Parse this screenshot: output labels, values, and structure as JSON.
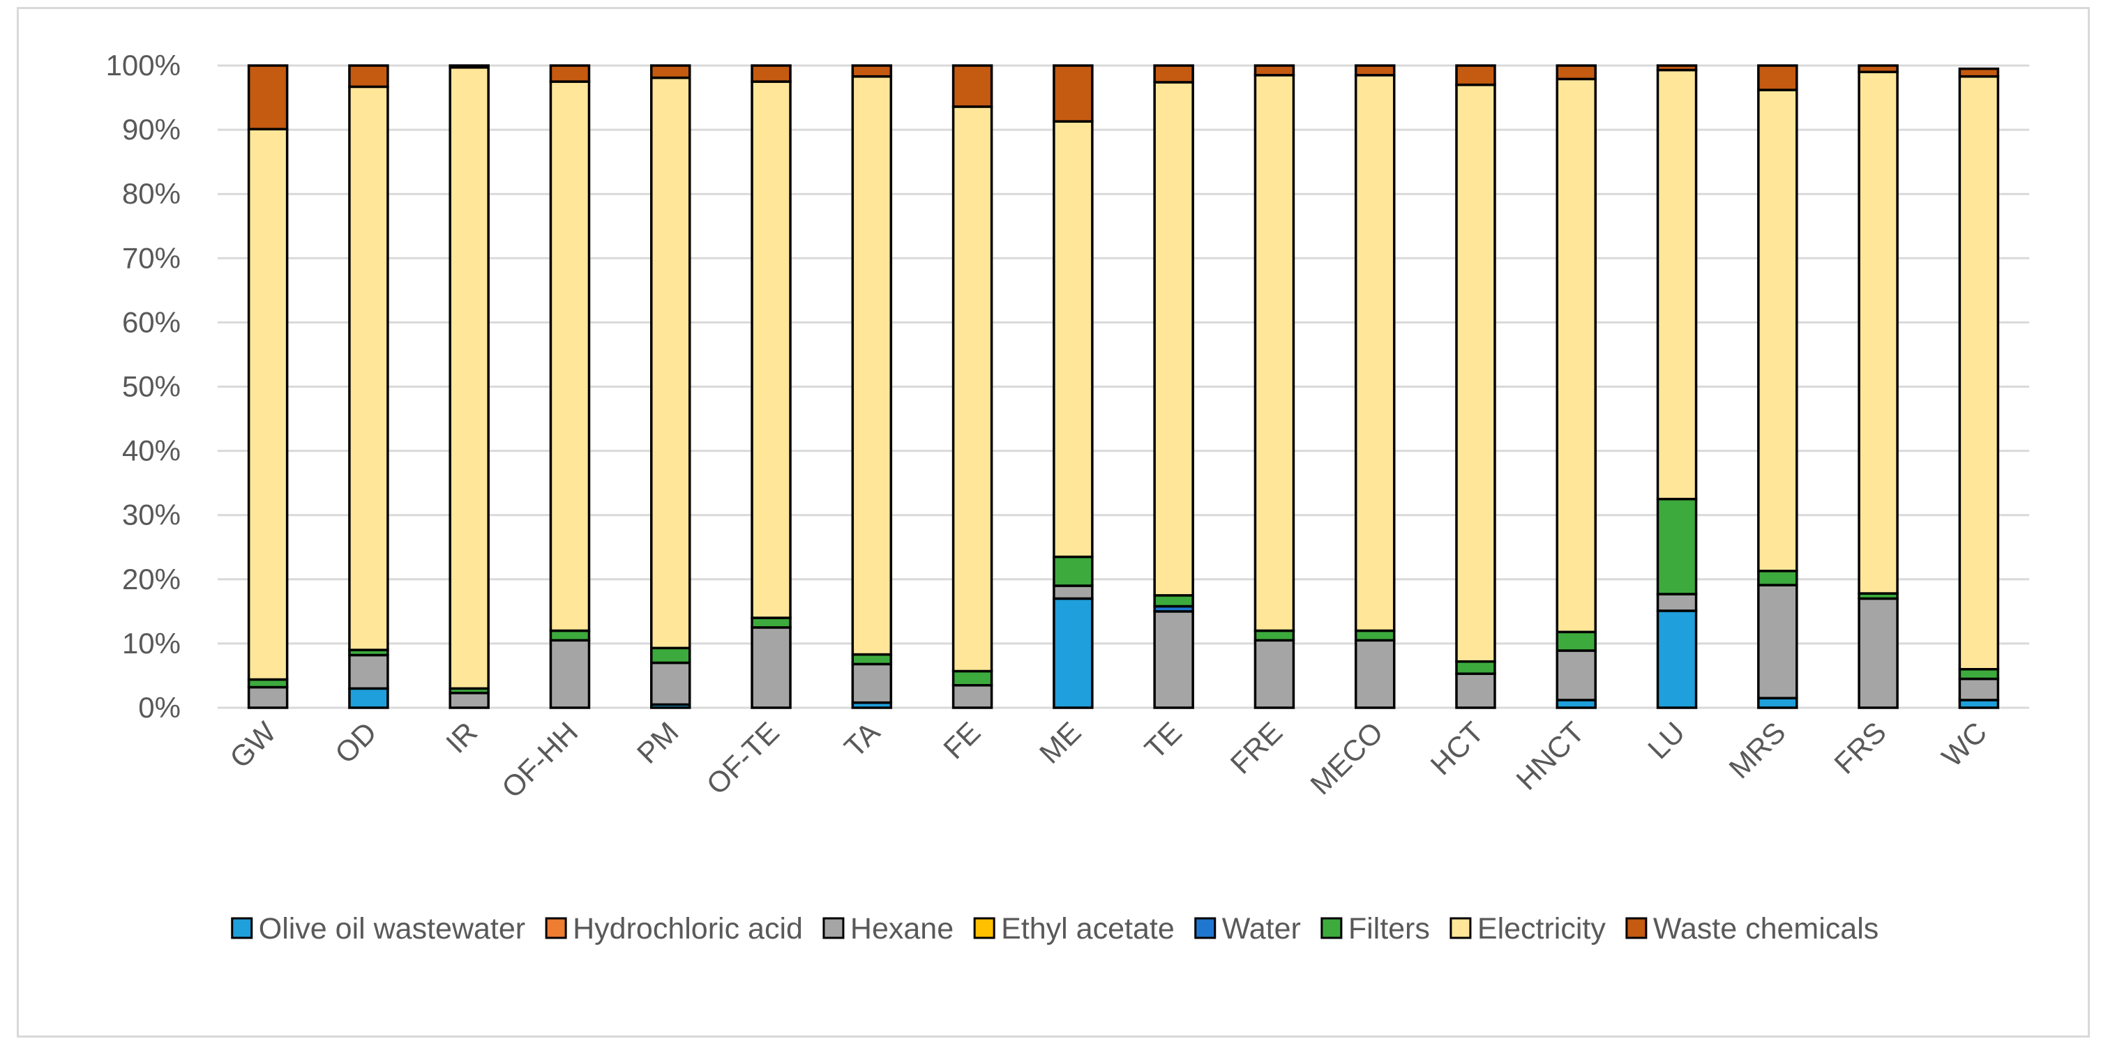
{
  "chart_data": {
    "type": "bar",
    "stacked": true,
    "percent": true,
    "title": "",
    "xlabel": "",
    "ylabel": "",
    "ylim": [
      0,
      100
    ],
    "yticks": [
      "0%",
      "10%",
      "20%",
      "30%",
      "40%",
      "50%",
      "60%",
      "70%",
      "80%",
      "90%",
      "100%"
    ],
    "grid": true,
    "legend_position": "bottom",
    "categories": [
      "GW",
      "OD",
      "IR",
      "OF-HH",
      "PM",
      "OF-TE",
      "TA",
      "FE",
      "ME",
      "TE",
      "FRE",
      "MECO",
      "HCT",
      "HNCT",
      "LU",
      "MRS",
      "FRS",
      "WC"
    ],
    "series": [
      {
        "name": "Olive oil wastewater",
        "color": "#1f9fdb",
        "values": [
          0,
          3,
          0,
          0,
          0.5,
          0,
          0.8,
          0,
          17,
          0,
          0,
          0,
          0,
          1.2,
          15.1,
          1.5,
          0,
          1.2
        ]
      },
      {
        "name": "Hydrochloric acid",
        "color": "#ed7d31",
        "values": [
          0,
          0,
          0,
          0,
          0,
          0,
          0,
          0,
          0,
          0,
          0,
          0,
          0,
          0,
          0,
          0,
          0,
          0
        ]
      },
      {
        "name": "Hexane",
        "color": "#a5a5a5",
        "values": [
          3.2,
          5.2,
          2.3,
          10.5,
          6.5,
          12.5,
          6,
          3.5,
          2,
          15,
          10.5,
          10.5,
          5.3,
          7.7,
          2.6,
          17.6,
          17,
          3.3
        ]
      },
      {
        "name": "Ethyl acetate",
        "color": "#ffc000",
        "values": [
          0,
          0,
          0,
          0,
          0,
          0,
          0,
          0,
          0,
          0,
          0,
          0,
          0,
          0,
          0,
          0,
          0,
          0
        ]
      },
      {
        "name": "Water",
        "color": "#1f77d0",
        "values": [
          0,
          0,
          0,
          0,
          0,
          0,
          0,
          0,
          0,
          0.8,
          0,
          0,
          0,
          0,
          0,
          0,
          0,
          0
        ]
      },
      {
        "name": "Filters",
        "color": "#3daa3d",
        "values": [
          1.2,
          0.8,
          0.7,
          1.5,
          2.3,
          1.5,
          1.5,
          2.2,
          4.5,
          1.7,
          1.5,
          1.5,
          1.9,
          2.9,
          14.8,
          2.2,
          0.8,
          1.5
        ]
      },
      {
        "name": "Electricity",
        "color": "#ffe699",
        "values": [
          85.7,
          87.7,
          96.7,
          85.5,
          88.8,
          83.5,
          90,
          87.9,
          67.8,
          79.9,
          86.5,
          86.5,
          89.8,
          86.1,
          66.8,
          74.9,
          81.2,
          92.3
        ]
      },
      {
        "name": "Waste chemicals",
        "color": "#c55a11",
        "values": [
          9.9,
          3.3,
          0.3,
          2.5,
          1.9,
          2.5,
          1.7,
          6.4,
          8.7,
          2.6,
          1.5,
          1.5,
          3,
          2.1,
          0.7,
          3.8,
          1,
          1.2
        ]
      }
    ]
  }
}
